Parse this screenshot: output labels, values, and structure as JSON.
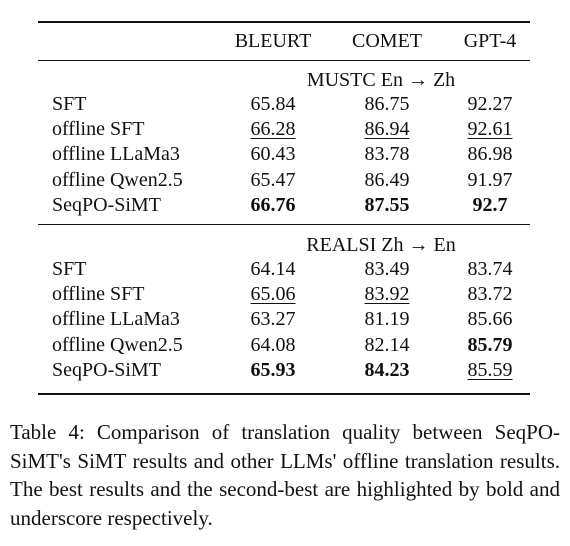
{
  "table": {
    "header": [
      "BLEURT",
      "COMET",
      "GPT-4"
    ],
    "sections": [
      {
        "title": "MUSTC En → Zh",
        "rows": [
          {
            "label": "SFT",
            "values": [
              65.84,
              86.75,
              92.27
            ]
          },
          {
            "label": "offline SFT",
            "values": [
              66.28,
              86.94,
              92.61
            ],
            "underline": [
              0,
              1,
              2
            ]
          },
          {
            "label": "offline LLaMa3",
            "values": [
              60.43,
              83.78,
              86.98
            ]
          },
          {
            "label": "offline Qwen2.5",
            "values": [
              65.47,
              86.49,
              91.97
            ]
          },
          {
            "label": "SeqPO-SiMT",
            "values": [
              66.76,
              87.55,
              92.7
            ],
            "bold": [
              0,
              1,
              2
            ]
          }
        ]
      },
      {
        "title": "REALSI Zh → En",
        "rows": [
          {
            "label": "SFT",
            "values": [
              64.14,
              83.49,
              83.74
            ]
          },
          {
            "label": "offline SFT",
            "values": [
              65.06,
              83.92,
              83.72
            ],
            "underline": [
              0,
              1
            ]
          },
          {
            "label": "offline LLaMa3",
            "values": [
              63.27,
              81.19,
              85.66
            ]
          },
          {
            "label": "offline Qwen2.5",
            "values": [
              64.08,
              82.14,
              85.79
            ],
            "bold": [
              2
            ]
          },
          {
            "label": "SeqPO-SiMT",
            "values": [
              65.93,
              84.23,
              85.59
            ],
            "bold": [
              0,
              1
            ],
            "underline": [
              2
            ]
          }
        ]
      }
    ]
  },
  "caption": "Table 4: Comparison of translation quality between SeqPO-SiMT's SiMT results and other LLMs' offline translation results. The best results and the second-best are highlighted by bold and underscore respectively."
}
